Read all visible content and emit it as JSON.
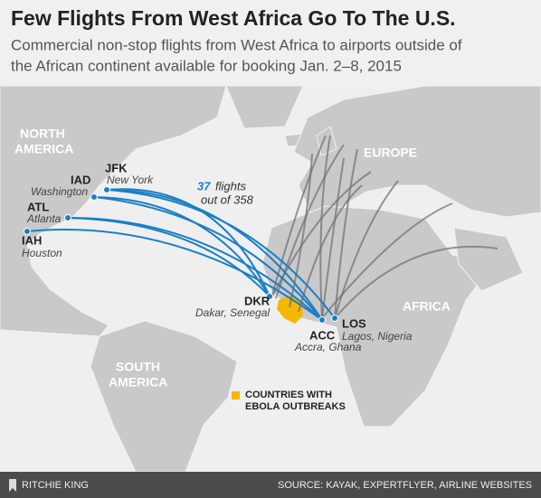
{
  "header": {
    "title": "Few Flights From West Africa Go To The U.S.",
    "subtitle": [
      "Commercial non-stop flights from West Africa to airports outside of",
      "the African continent available for booking Jan. 2–8, 2015"
    ]
  },
  "map": {
    "region_labels": {
      "north_america": [
        "NORTH",
        "AMERICA"
      ],
      "europe": "EUROPE",
      "africa": "AFRICA",
      "south_america": [
        "SOUTH",
        "AMERICA"
      ]
    },
    "airports": [
      {
        "code": "JFK",
        "city": "New York"
      },
      {
        "code": "IAD",
        "city": "Washington"
      },
      {
        "code": "ATL",
        "city": "Atlanta"
      },
      {
        "code": "IAH",
        "city": "Houston"
      },
      {
        "code": "DKR",
        "city": "Dakar, Senegal"
      },
      {
        "code": "ACC",
        "city": "Accra, Ghana"
      },
      {
        "code": "LOS",
        "city": "Lagos, Nigeria"
      }
    ],
    "annotation": {
      "highlight": "37",
      "line1": "flights",
      "line2": "out of 358"
    },
    "legend": [
      "COUNTRIES WITH",
      "EBOLA OUTBREAKS"
    ]
  },
  "footer": {
    "author": "RITCHIE KING",
    "source": "SOURCE: KAYAK, EXPERTFLYER, AIRLINE WEBSITES"
  }
}
